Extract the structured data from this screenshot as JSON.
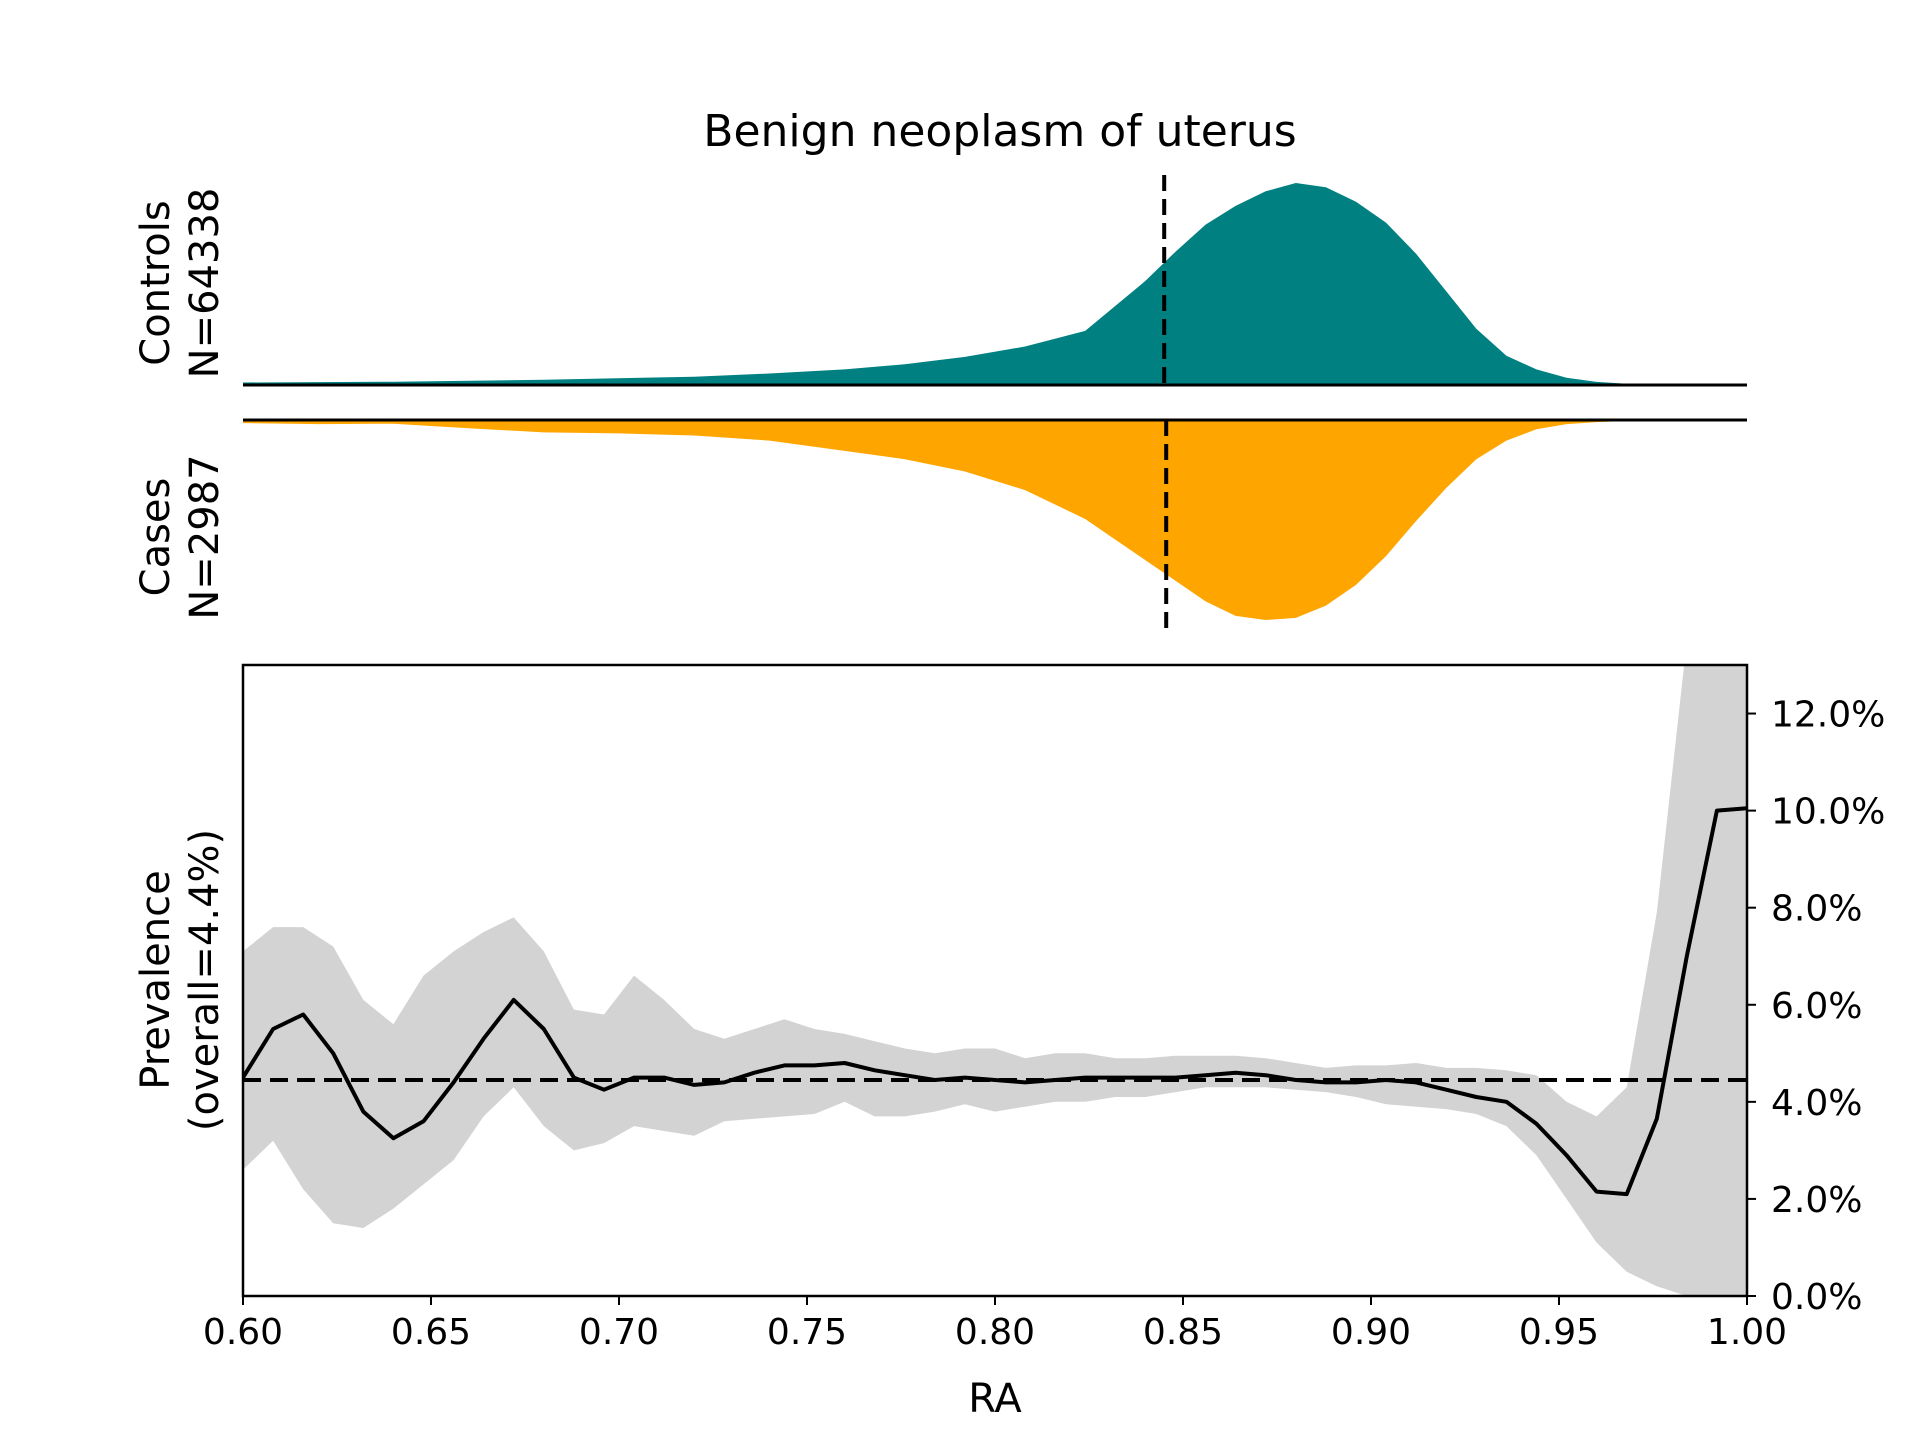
{
  "title": "Benign neoplasm of uterus",
  "colors": {
    "controls": "#008080",
    "cases": "#FFA500",
    "ci_band": "#D3D3D3",
    "line": "#000000"
  },
  "chart_data": [
    {
      "type": "area",
      "panel": "controls",
      "ylabel": [
        "Controls",
        "N=64338"
      ],
      "marker_x": 0.845,
      "x": [
        0.6,
        0.64,
        0.68,
        0.72,
        0.74,
        0.76,
        0.776,
        0.792,
        0.808,
        0.824,
        0.84,
        0.848,
        0.856,
        0.864,
        0.872,
        0.88,
        0.888,
        0.896,
        0.904,
        0.912,
        0.92,
        0.928,
        0.936,
        0.944,
        0.952,
        0.96,
        0.968,
        0.976,
        0.984,
        1.0
      ],
      "density": [
        0.012,
        0.016,
        0.025,
        0.04,
        0.055,
        0.075,
        0.1,
        0.135,
        0.185,
        0.26,
        0.5,
        0.64,
        0.77,
        0.86,
        0.93,
        0.97,
        0.95,
        0.88,
        0.78,
        0.63,
        0.45,
        0.27,
        0.14,
        0.075,
        0.035,
        0.015,
        0.006,
        0.003,
        0.001,
        0.0
      ]
    },
    {
      "type": "area",
      "panel": "cases",
      "ylabel": [
        "Cases",
        "N=2987"
      ],
      "marker_x": 0.845,
      "x": [
        0.6,
        0.62,
        0.64,
        0.66,
        0.68,
        0.7,
        0.72,
        0.74,
        0.76,
        0.776,
        0.792,
        0.808,
        0.824,
        0.84,
        0.848,
        0.856,
        0.864,
        0.872,
        0.88,
        0.888,
        0.896,
        0.904,
        0.912,
        0.92,
        0.928,
        0.936,
        0.944,
        0.952,
        0.96,
        0.968,
        0.976,
        1.0
      ],
      "density": [
        0.015,
        0.02,
        0.018,
        0.04,
        0.06,
        0.065,
        0.075,
        0.1,
        0.15,
        0.19,
        0.25,
        0.34,
        0.48,
        0.68,
        0.78,
        0.88,
        0.95,
        0.97,
        0.96,
        0.9,
        0.8,
        0.66,
        0.49,
        0.33,
        0.19,
        0.1,
        0.045,
        0.02,
        0.01,
        0.005,
        0.002,
        0.0
      ]
    },
    {
      "type": "line",
      "panel": "prevalence",
      "xlabel": "RA",
      "ylabel": [
        "Prevalence",
        "(overall=4.4%)"
      ],
      "xlim": [
        0.6,
        1.0
      ],
      "ylim": [
        0.0,
        13.0
      ],
      "x_ticks": [
        "0.60",
        "0.65",
        "0.70",
        "0.75",
        "0.80",
        "0.85",
        "0.90",
        "0.95",
        "1.00"
      ],
      "x_tick_values": [
        0.6,
        0.65,
        0.7,
        0.75,
        0.8,
        0.85,
        0.9,
        0.95,
        1.0
      ],
      "y_ticks": [
        "0.0%",
        "2.0%",
        "4.0%",
        "6.0%",
        "8.0%",
        "10.0%",
        "12.0%"
      ],
      "y_tick_values": [
        0,
        2,
        4,
        6,
        8,
        10,
        12
      ],
      "reference_y": 4.45,
      "x": [
        0.6,
        0.608,
        0.616,
        0.624,
        0.632,
        0.64,
        0.648,
        0.656,
        0.664,
        0.672,
        0.68,
        0.688,
        0.696,
        0.704,
        0.712,
        0.72,
        0.728,
        0.736,
        0.744,
        0.752,
        0.76,
        0.768,
        0.776,
        0.784,
        0.792,
        0.8,
        0.808,
        0.816,
        0.824,
        0.832,
        0.84,
        0.848,
        0.856,
        0.864,
        0.872,
        0.88,
        0.888,
        0.896,
        0.904,
        0.912,
        0.92,
        0.928,
        0.936,
        0.944,
        0.952,
        0.96,
        0.968,
        0.976,
        0.984,
        0.992,
        1.0
      ],
      "y": [
        4.5,
        5.5,
        5.8,
        5.0,
        3.8,
        3.25,
        3.6,
        4.4,
        5.3,
        6.1,
        5.5,
        4.5,
        4.25,
        4.5,
        4.5,
        4.35,
        4.4,
        4.6,
        4.75,
        4.75,
        4.8,
        4.65,
        4.55,
        4.45,
        4.5,
        4.45,
        4.4,
        4.45,
        4.5,
        4.5,
        4.5,
        4.5,
        4.55,
        4.6,
        4.55,
        4.45,
        4.4,
        4.4,
        4.45,
        4.4,
        4.25,
        4.1,
        4.0,
        3.55,
        2.9,
        2.15,
        2.1,
        3.65,
        7.0,
        10.0,
        10.05
      ],
      "ci_lower": [
        2.6,
        3.2,
        2.2,
        1.5,
        1.4,
        1.8,
        2.3,
        2.8,
        3.7,
        4.3,
        3.5,
        3.0,
        3.15,
        3.5,
        3.4,
        3.3,
        3.6,
        3.65,
        3.7,
        3.75,
        4.0,
        3.7,
        3.7,
        3.8,
        3.95,
        3.8,
        3.9,
        4.0,
        4.0,
        4.1,
        4.1,
        4.2,
        4.3,
        4.3,
        4.3,
        4.25,
        4.2,
        4.1,
        3.95,
        3.9,
        3.85,
        3.75,
        3.5,
        2.9,
        2.0,
        1.1,
        0.5,
        0.2,
        0.0,
        0.0,
        0.0
      ],
      "ci_upper": [
        7.1,
        7.6,
        7.6,
        7.2,
        6.1,
        5.6,
        6.6,
        7.1,
        7.5,
        7.8,
        7.1,
        5.9,
        5.8,
        6.6,
        6.1,
        5.5,
        5.3,
        5.5,
        5.7,
        5.5,
        5.4,
        5.25,
        5.1,
        5.0,
        5.1,
        5.1,
        4.9,
        5.0,
        5.0,
        4.9,
        4.9,
        4.95,
        4.95,
        4.95,
        4.9,
        4.8,
        4.7,
        4.75,
        4.75,
        4.8,
        4.7,
        4.7,
        4.65,
        4.55,
        4.0,
        3.7,
        4.3,
        7.9,
        13.5,
        13.5,
        13.5
      ]
    }
  ]
}
